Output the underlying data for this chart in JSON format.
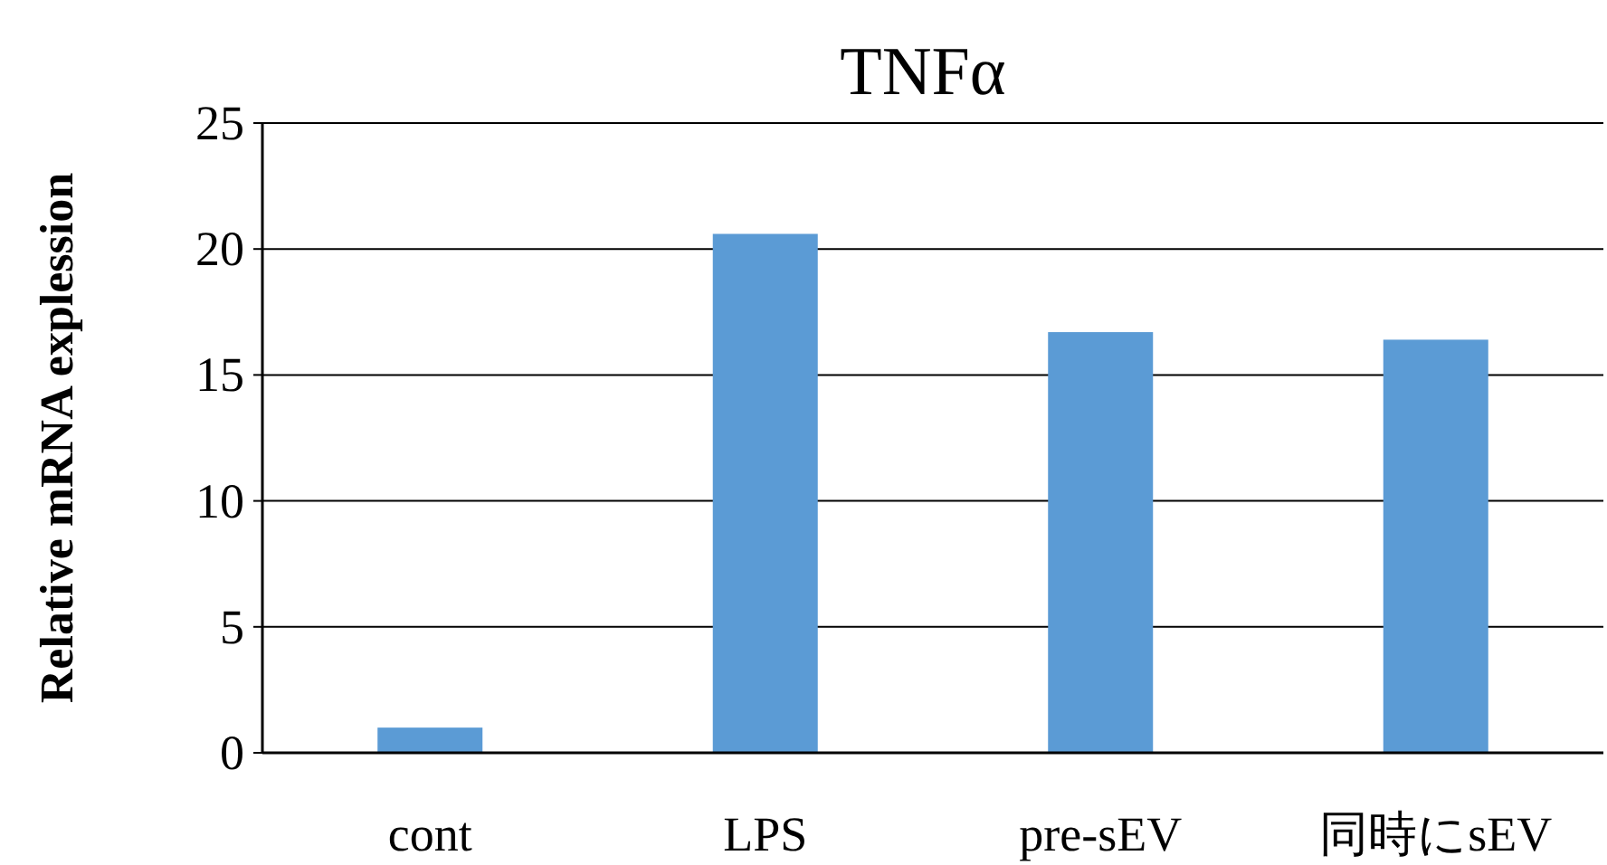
{
  "chart_data": {
    "type": "bar",
    "title": "TNFα",
    "ylabel": "Relative mRNA explession",
    "categories": [
      "cont",
      "LPS",
      "pre-sEV",
      "同時にsEV"
    ],
    "values": [
      1.0,
      20.6,
      16.7,
      16.4
    ],
    "color": "#5b9bd5",
    "ylim": [
      0,
      25
    ],
    "yticks": [
      0,
      5,
      10,
      15,
      20,
      25
    ],
    "grid": "y"
  }
}
